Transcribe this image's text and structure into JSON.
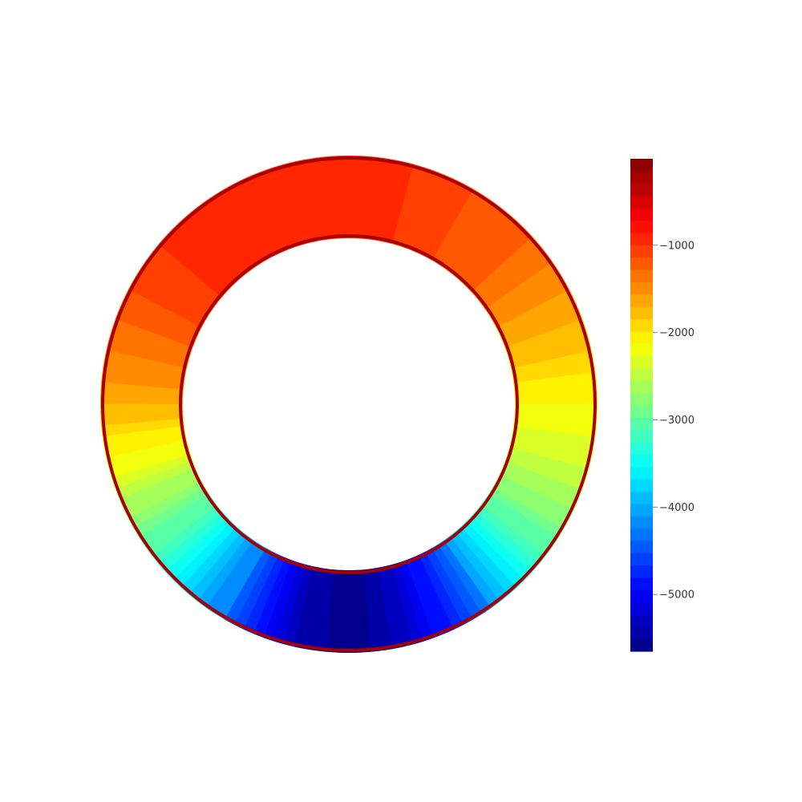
{
  "chart_data": {
    "type": "heatmap",
    "shape": "annulus",
    "colormap": "jet",
    "title": "",
    "colorbar": {
      "min": -5650,
      "max": -10,
      "ticks": [
        -1000,
        -2000,
        -3000,
        -4000,
        -5000
      ],
      "tick_labels": [
        "−1000",
        "−2000",
        "−3000",
        "−4000",
        "−5000"
      ],
      "placement": "right"
    },
    "angle_convention": "degrees counter-clockwise from the right (east) side of the ring",
    "angular_profile": [
      {
        "angle": 0,
        "value": -2150
      },
      {
        "angle": 15,
        "value": -1800
      },
      {
        "angle": 30,
        "value": -1500
      },
      {
        "angle": 45,
        "value": -1250
      },
      {
        "angle": 60,
        "value": -1150
      },
      {
        "angle": 75,
        "value": -1000
      },
      {
        "angle": 90,
        "value": -900
      },
      {
        "angle": 105,
        "value": -900
      },
      {
        "angle": 120,
        "value": -900
      },
      {
        "angle": 135,
        "value": -950
      },
      {
        "angle": 150,
        "value": -1100
      },
      {
        "angle": 165,
        "value": -1350
      },
      {
        "angle": 180,
        "value": -1700
      },
      {
        "angle": 195,
        "value": -2200
      },
      {
        "angle": 210,
        "value": -2800
      },
      {
        "angle": 225,
        "value": -3500
      },
      {
        "angle": 240,
        "value": -4300
      },
      {
        "angle": 255,
        "value": -5300
      },
      {
        "angle": 270,
        "value": -5650
      },
      {
        "angle": 285,
        "value": -5250
      },
      {
        "angle": 300,
        "value": -4500
      },
      {
        "angle": 315,
        "value": -3500
      },
      {
        "angle": 330,
        "value": -2800
      },
      {
        "angle": 345,
        "value": -2400
      },
      {
        "angle": 360,
        "value": -2150
      }
    ],
    "edge_value": -200
  }
}
